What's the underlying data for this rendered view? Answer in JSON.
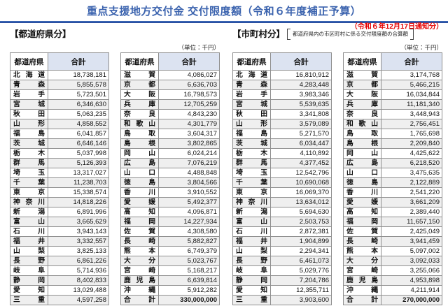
{
  "title": "重点支援地方交付金 交付限度額（令和６年度補正予算）",
  "notice_date": "（令和６年12月17日通知分）",
  "unit_label": "（単位：千円）",
  "table_header": {
    "prefecture": "都道府県",
    "total": "合計"
  },
  "colors": {
    "title_blue": "#3b63ae",
    "rule_blue": "#2d55a5",
    "notice_red": "#e60000",
    "header_fill": "#dce3f1",
    "row_stripe": "#efefef"
  },
  "sections": [
    {
      "heading": "【都道府県分】",
      "tables": [
        {
          "rows": [
            [
              "北海道",
              "18,738,181"
            ],
            [
              "青森",
              "5,855,578"
            ],
            [
              "岩手",
              "5,723,501"
            ],
            [
              "宮城",
              "6,346,630"
            ],
            [
              "秋田",
              "5,063,235"
            ],
            [
              "山形",
              "4,858,552"
            ],
            [
              "福島",
              "6,041,857"
            ],
            [
              "茨城",
              "6,646,146"
            ],
            [
              "栃木",
              "5,037,998"
            ],
            [
              "群馬",
              "5,126,393"
            ],
            [
              "埼玉",
              "13,317,027"
            ],
            [
              "千葉",
              "11,238,703"
            ],
            [
              "東京",
              "15,338,574"
            ],
            [
              "神奈川",
              "14,818,226"
            ],
            [
              "新潟",
              "6,891,996"
            ],
            [
              "富山",
              "3,665,629"
            ],
            [
              "石川",
              "3,943,143"
            ],
            [
              "福井",
              "3,332,557"
            ],
            [
              "山梨",
              "3,825,133"
            ],
            [
              "長野",
              "6,861,226"
            ],
            [
              "岐阜",
              "5,714,936"
            ],
            [
              "静岡",
              "8,402,833"
            ],
            [
              "愛知",
              "13,029,488"
            ],
            [
              "三重",
              "4,597,258"
            ]
          ]
        },
        {
          "rows": [
            [
              "滋賀",
              "4,086,027"
            ],
            [
              "京都",
              "6,636,703"
            ],
            [
              "大阪",
              "16,798,573"
            ],
            [
              "兵庫",
              "12,705,259"
            ],
            [
              "奈良",
              "4,843,230"
            ],
            [
              "和歌山",
              "4,301,779"
            ],
            [
              "鳥取",
              "3,604,317"
            ],
            [
              "島根",
              "3,802,865"
            ],
            [
              "岡山",
              "6,024,214"
            ],
            [
              "広島",
              "7,076,219"
            ],
            [
              "山口",
              "4,488,848"
            ],
            [
              "徳島",
              "3,804,566"
            ],
            [
              "香川",
              "3,910,552"
            ],
            [
              "愛媛",
              "5,492,377"
            ],
            [
              "高知",
              "4,096,871"
            ],
            [
              "福岡",
              "14,227,934"
            ],
            [
              "佐賀",
              "4,308,580"
            ],
            [
              "長崎",
              "5,882,827"
            ],
            [
              "熊本",
              "6,749,379"
            ],
            [
              "大分",
              "5,023,767"
            ],
            [
              "宮崎",
              "5,168,217"
            ],
            [
              "鹿児島",
              "6,639,814"
            ],
            [
              "沖縄",
              "5,912,282"
            ]
          ],
          "total_label": "合計",
          "total_value": "330,000,000"
        }
      ]
    },
    {
      "heading": "【市町村分】",
      "note": "都道府県内の市区町村に係る交付限度額の合算額",
      "tables": [
        {
          "rows": [
            [
              "北海道",
              "16,810,912"
            ],
            [
              "青森",
              "4,283,448"
            ],
            [
              "岩手",
              "3,983,346"
            ],
            [
              "宮城",
              "5,539,635"
            ],
            [
              "秋田",
              "3,341,808"
            ],
            [
              "山形",
              "3,579,089"
            ],
            [
              "福島",
              "5,271,570"
            ],
            [
              "茨城",
              "6,034,447"
            ],
            [
              "栃木",
              "4,110,892"
            ],
            [
              "群馬",
              "4,377,452"
            ],
            [
              "埼玉",
              "12,542,796"
            ],
            [
              "千葉",
              "10,690,068"
            ],
            [
              "東京",
              "16,069,370"
            ],
            [
              "神奈川",
              "13,634,012"
            ],
            [
              "新潟",
              "5,694,630"
            ],
            [
              "富山",
              "2,503,753"
            ],
            [
              "石川",
              "2,872,381"
            ],
            [
              "福井",
              "1,904,899"
            ],
            [
              "山梨",
              "2,294,341"
            ],
            [
              "長野",
              "6,461,073"
            ],
            [
              "岐阜",
              "5,029,776"
            ],
            [
              "静岡",
              "7,204,786"
            ],
            [
              "愛知",
              "12,355,711"
            ],
            [
              "三重",
              "3,903,600"
            ]
          ]
        },
        {
          "rows": [
            [
              "滋賀",
              "3,174,768"
            ],
            [
              "京都",
              "5,466,215"
            ],
            [
              "大阪",
              "16,034,844"
            ],
            [
              "兵庫",
              "11,181,340"
            ],
            [
              "奈良",
              "3,448,943"
            ],
            [
              "和歌山",
              "2,756,451"
            ],
            [
              "鳥取",
              "1,765,698"
            ],
            [
              "島根",
              "2,209,840"
            ],
            [
              "岡山",
              "4,425,622"
            ],
            [
              "広島",
              "6,218,520"
            ],
            [
              "山口",
              "3,475,635"
            ],
            [
              "徳島",
              "2,122,889"
            ],
            [
              "香川",
              "2,541,220"
            ],
            [
              "愛媛",
              "3,661,209"
            ],
            [
              "高知",
              "2,389,440"
            ],
            [
              "福岡",
              "11,657,150"
            ],
            [
              "佐賀",
              "2,425,049"
            ],
            [
              "長崎",
              "3,941,459"
            ],
            [
              "熊本",
              "5,097,002"
            ],
            [
              "大分",
              "3,092,033"
            ],
            [
              "宮崎",
              "3,255,066"
            ],
            [
              "鹿児島",
              "4,953,898"
            ],
            [
              "沖縄",
              "4,211,914"
            ]
          ],
          "total_label": "合計",
          "total_value": "270,000,000"
        }
      ]
    }
  ]
}
